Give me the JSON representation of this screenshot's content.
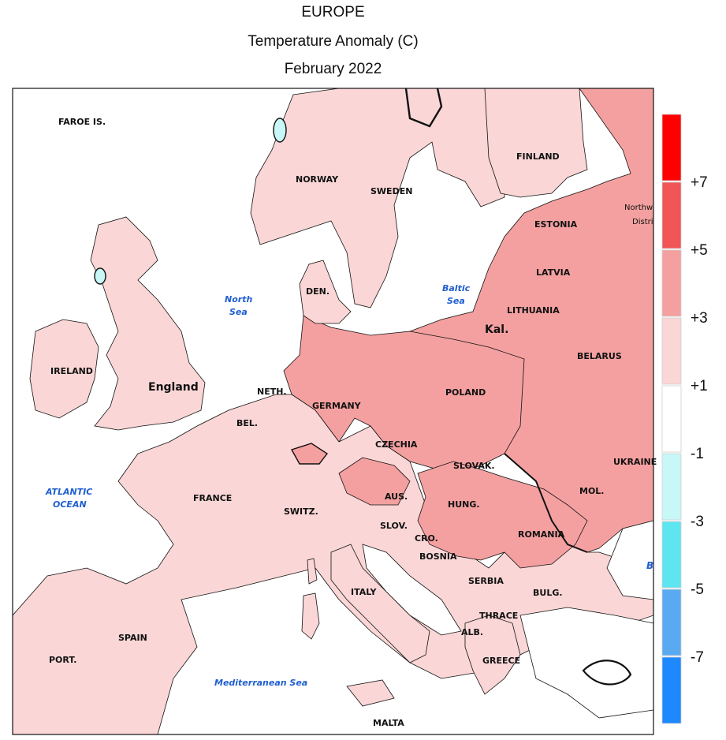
{
  "header": {
    "region": "EUROPE",
    "variable": "Temperature Anomaly (C)",
    "period": "February 2022"
  },
  "legend": {
    "bins": [
      {
        "color": "#ff0000"
      },
      {
        "color": "#f25555"
      },
      {
        "color": "#f4a0a0"
      },
      {
        "color": "#fad6d6"
      },
      {
        "color": "#ffffff"
      },
      {
        "color": "#c8f7f7"
      },
      {
        "color": "#5ee6f0"
      },
      {
        "color": "#5aaaf2"
      },
      {
        "color": "#1e88ff"
      }
    ],
    "ticks": [
      "+7",
      "+5",
      "+3",
      "+1",
      "-1",
      "-3",
      "-5",
      "-7"
    ]
  },
  "labels": {
    "faroe": "FAROE IS.",
    "norway": "NORWAY",
    "sweden": "SWEDEN",
    "finland": "FINLAND",
    "estonia": "ESTONIA",
    "latvia": "LATVIA",
    "lithuania": "LITHUANIA",
    "kal": "Kal.",
    "belarus": "BELARUS",
    "nw_district_1": "Northw",
    "nw_district_2": "Distri",
    "ireland": "IRELAND",
    "england": "England",
    "north_sea_1": "North",
    "north_sea_2": "Sea",
    "baltic_sea_1": "Baltic",
    "baltic_sea_2": "Sea",
    "denmark": "DEN.",
    "netherlands": "NETH.",
    "germany": "GERMANY",
    "poland": "POLAND",
    "ukraine": "UKRAINE",
    "belgium": "BEL.",
    "czechia": "CZECHIA",
    "slovakia": "SLOVAK.",
    "atlantic_1": "ATLANTIC",
    "atlantic_2": "OCEAN",
    "france": "FRANCE",
    "austria": "AUS.",
    "switzerland": "SWITZ.",
    "hungary": "HUNG.",
    "moldova": "MOL.",
    "slovenia": "SLOV.",
    "romania": "ROMANIA",
    "croatia": "CRO.",
    "bosnia": "BOSNIA",
    "b_edge": "B",
    "serbia": "SERBIA",
    "italy": "ITALY",
    "bulgaria": "BULG.",
    "spain": "SPAIN",
    "thrace": "THRACE",
    "albania": "ALB.",
    "portugal": "PORT.",
    "greece": "GREECE",
    "med_sea": "Mediterranean Sea",
    "malta": "MALTA"
  }
}
